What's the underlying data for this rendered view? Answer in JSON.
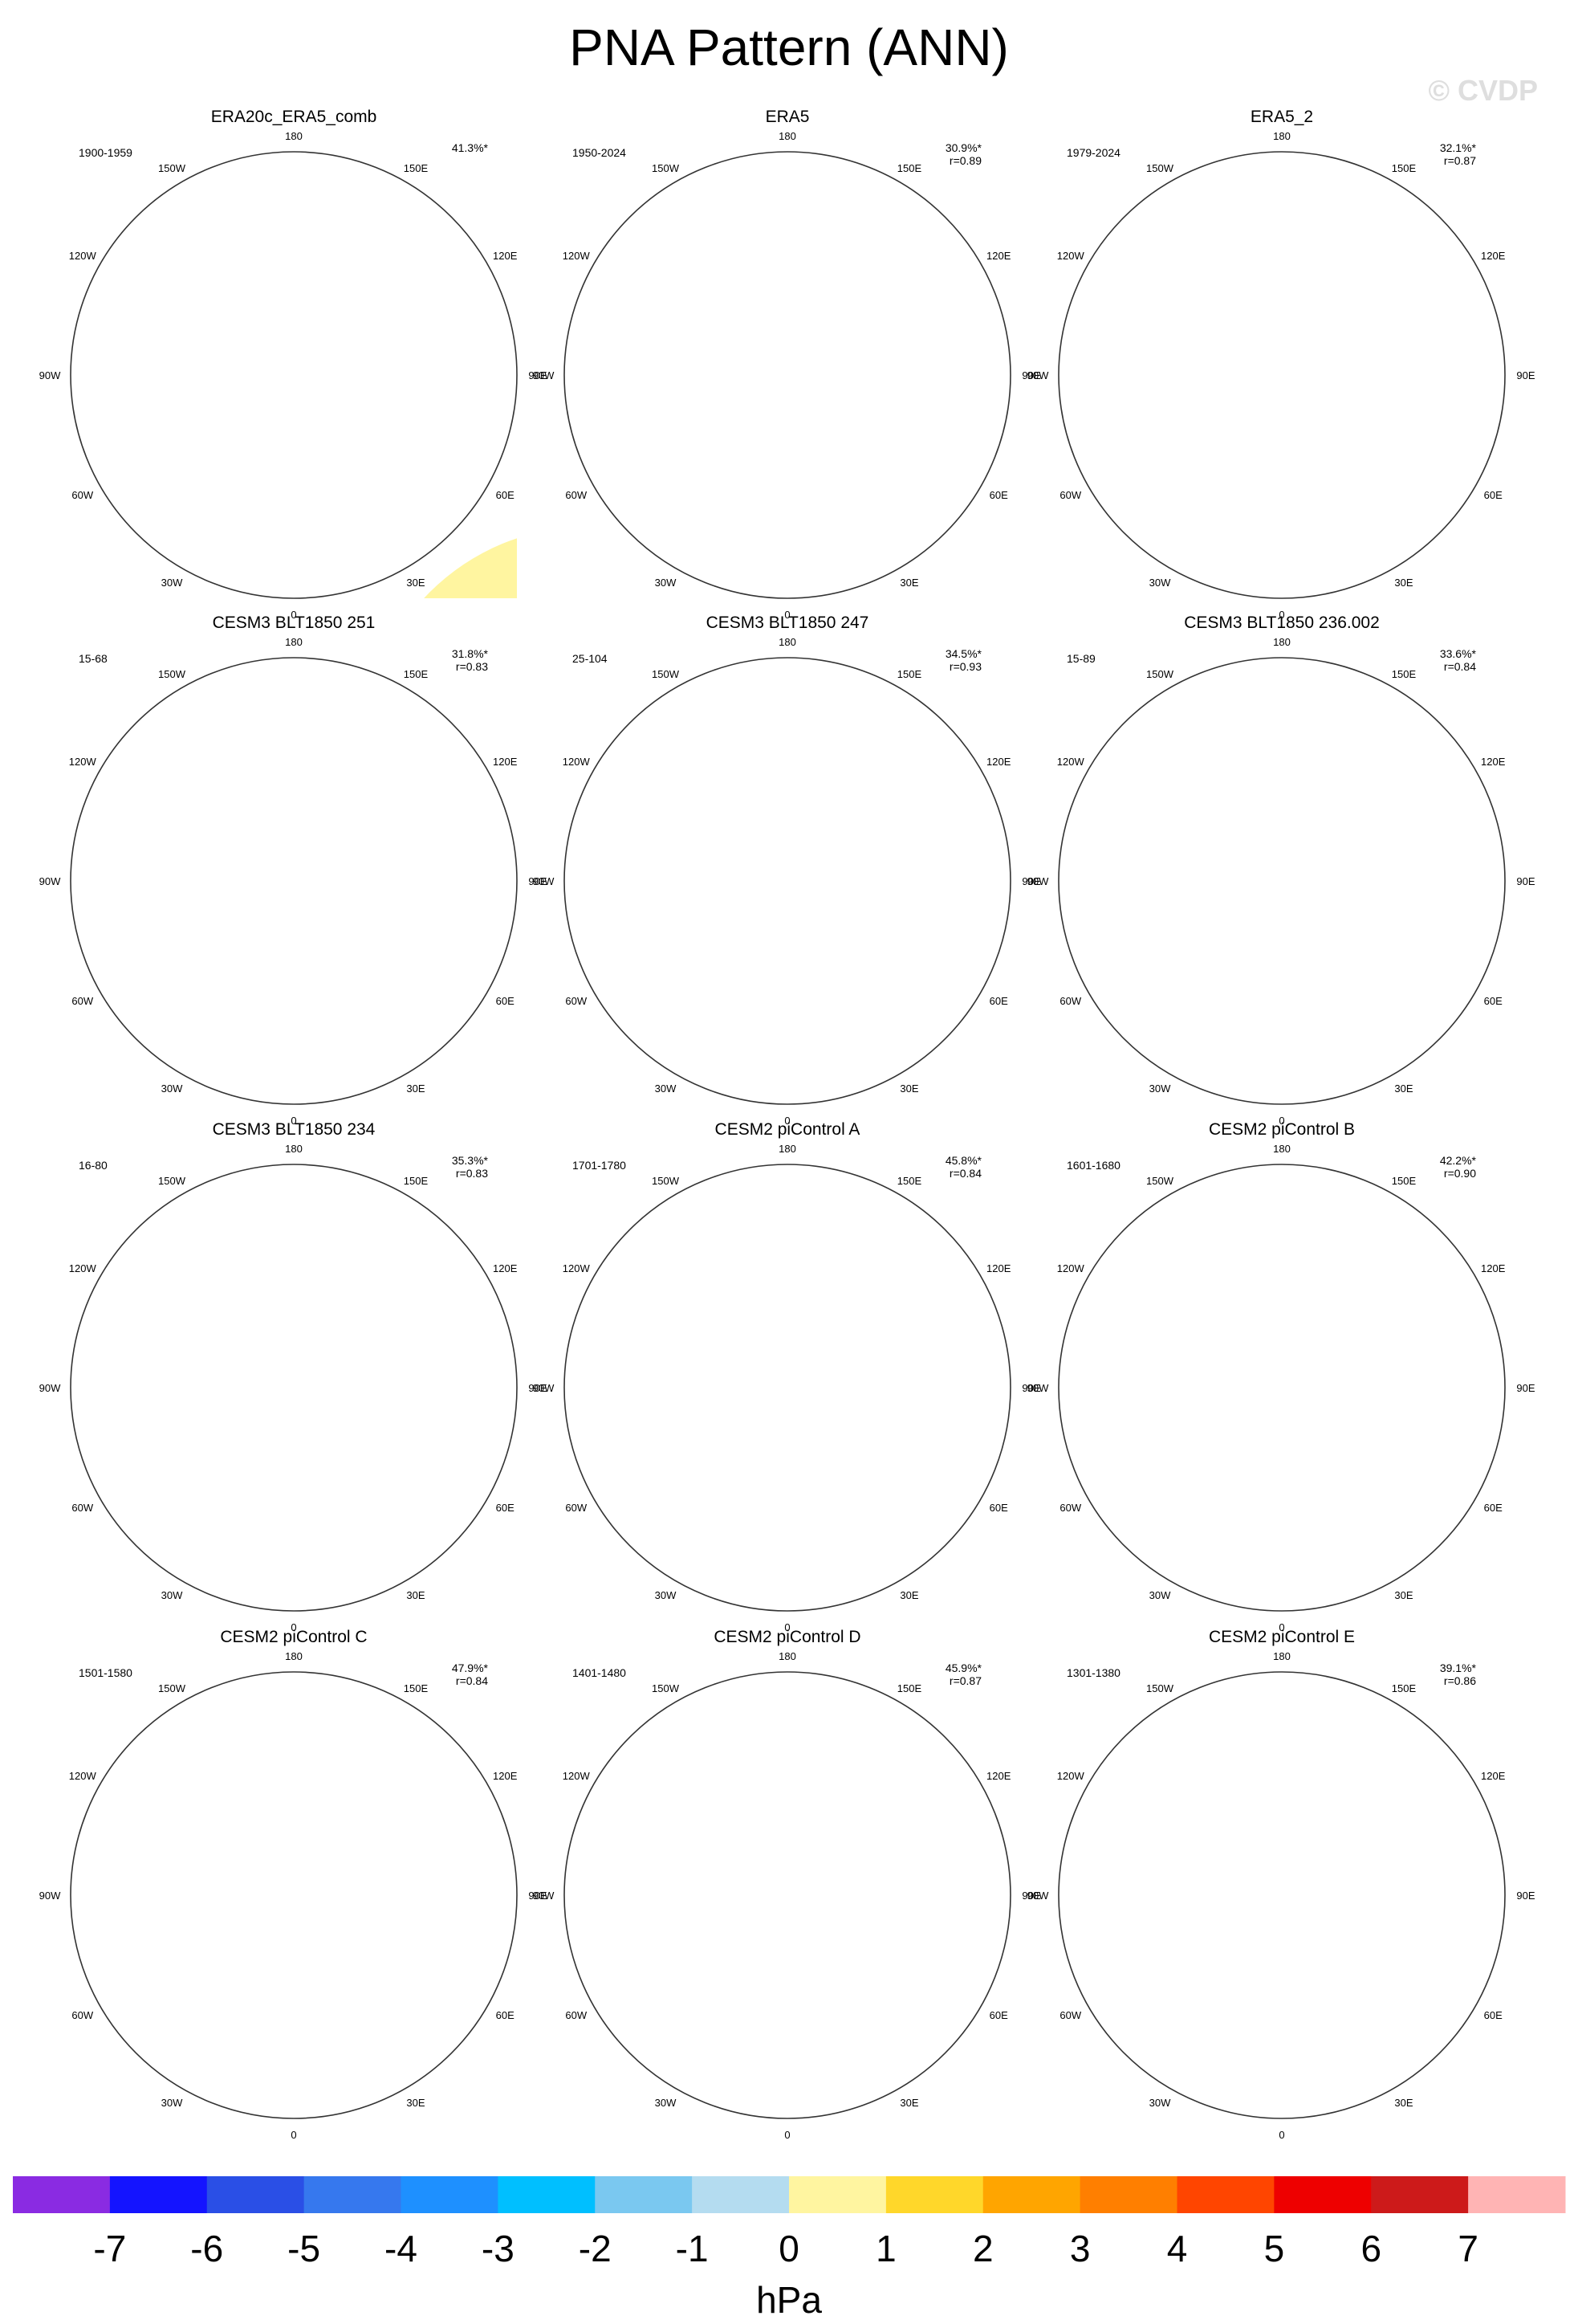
{
  "title": "PNA Pattern (ANN)",
  "watermark": "© CVDP",
  "chart_data": {
    "type": "polar-map-grid",
    "title": "PNA Pattern (ANN)",
    "units": "hPa",
    "colorbar": {
      "tick_labels": [
        "-7",
        "-6",
        "-5",
        "-4",
        "-3",
        "-2",
        "-1",
        "0",
        "1",
        "2",
        "3",
        "4",
        "5",
        "6",
        "7"
      ],
      "colors": [
        "#8a2be2",
        "#1414ff",
        "#2a4fe6",
        "#3678ee",
        "#1e90ff",
        "#00bfff",
        "#7ac8f0",
        "#b4dcf0",
        "#fff5a0",
        "#ffd72a",
        "#ffa500",
        "#ff7f00",
        "#ff4500",
        "#ee0000",
        "#cd1a1a",
        "#ffb4b4"
      ]
    },
    "longitude_labels": [
      "180",
      "150E",
      "120E",
      "90E",
      "60E",
      "30E",
      "0",
      "30W",
      "60W",
      "90W",
      "120W",
      "150W"
    ],
    "panels": [
      {
        "title": "ERA20c_ERA5_comb",
        "years": "1900-1959",
        "pct": "41.3%*",
        "r": ""
      },
      {
        "title": "ERA5",
        "years": "1950-2024",
        "pct": "30.9%*",
        "r": "r=0.89"
      },
      {
        "title": "ERA5_2",
        "years": "1979-2024",
        "pct": "32.1%*",
        "r": "r=0.87"
      },
      {
        "title": "CESM3 BLT1850 251",
        "years": "15-68",
        "pct": "31.8%*",
        "r": "r=0.83"
      },
      {
        "title": "CESM3 BLT1850 247",
        "years": "25-104",
        "pct": "34.5%*",
        "r": "r=0.93"
      },
      {
        "title": "CESM3 BLT1850 236.002",
        "years": "15-89",
        "pct": "33.6%*",
        "r": "r=0.84"
      },
      {
        "title": "CESM3 BLT1850 234",
        "years": "16-80",
        "pct": "35.3%*",
        "r": "r=0.83"
      },
      {
        "title": "CESM2 piControl A",
        "years": "1701-1780",
        "pct": "45.8%*",
        "r": "r=0.84"
      },
      {
        "title": "CESM2 piControl B",
        "years": "1601-1680",
        "pct": "42.2%*",
        "r": "r=0.90"
      },
      {
        "title": "CESM2 piControl C",
        "years": "1501-1580",
        "pct": "47.9%*",
        "r": "r=0.84"
      },
      {
        "title": "CESM2 piControl D",
        "years": "1401-1480",
        "pct": "45.9%*",
        "r": "r=0.87"
      },
      {
        "title": "CESM2 piControl E",
        "years": "1301-1380",
        "pct": "39.1%*",
        "r": "r=0.86"
      }
    ]
  }
}
